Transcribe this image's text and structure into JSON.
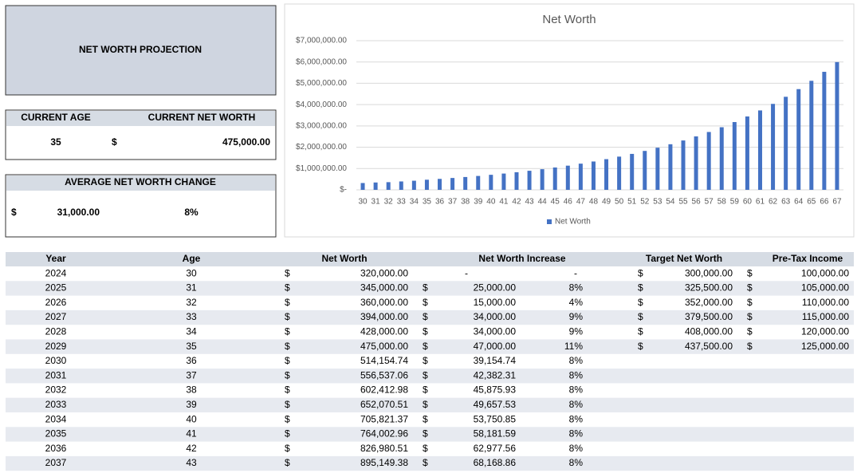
{
  "header": {
    "title": "NET WORTH PROJECTION"
  },
  "currency": "$",
  "current": {
    "age_label": "CURRENT AGE",
    "net_worth_label": "CURRENT NET WORTH",
    "age": "35",
    "net_worth": "475,000.00"
  },
  "average_change": {
    "label": "AVERAGE NET WORTH CHANGE",
    "amount": "31,000.00",
    "percent": "8%"
  },
  "chart_data": {
    "type": "bar",
    "title": "Net Worth",
    "categories": [
      30,
      31,
      32,
      33,
      34,
      35,
      36,
      37,
      38,
      39,
      40,
      41,
      42,
      43,
      44,
      45,
      46,
      47,
      48,
      49,
      50,
      51,
      52,
      53,
      54,
      55,
      56,
      57,
      58,
      59,
      60,
      61,
      62,
      63,
      64,
      65,
      66,
      67
    ],
    "series": [
      {
        "name": "Net Worth",
        "color": "#4472c4",
        "values": [
          320000,
          345000,
          360000,
          394000,
          428000,
          475000,
          514154.74,
          556537.06,
          602412.98,
          652070.51,
          705821.37,
          764002.96,
          826980.51,
          895149.38,
          969000,
          1049000,
          1135000,
          1229000,
          1330000,
          1440000,
          1559000,
          1687000,
          1827000,
          1977000,
          2140000,
          2317000,
          2508000,
          2715000,
          2938000,
          3181000,
          3443000,
          3727000,
          4034000,
          4367000,
          4727000,
          5117000,
          5539000,
          5996000
        ]
      }
    ],
    "ylim": [
      0,
      7000000
    ],
    "yticks": [
      {
        "value": 0,
        "label": "$-"
      },
      {
        "value": 1000000,
        "label": "$1,000,000.00"
      },
      {
        "value": 2000000,
        "label": "$2,000,000.00"
      },
      {
        "value": 3000000,
        "label": "$3,000,000.00"
      },
      {
        "value": 4000000,
        "label": "$4,000,000.00"
      },
      {
        "value": 5000000,
        "label": "$5,000,000.00"
      },
      {
        "value": 6000000,
        "label": "$6,000,000.00"
      },
      {
        "value": 7000000,
        "label": "$7,000,000.00"
      }
    ],
    "grid": true,
    "legend": "bottom"
  },
  "table": {
    "columns": [
      "Year",
      "Age",
      "Net Worth",
      "Net Worth Increase",
      "Target Net Worth",
      "Pre-Tax Income"
    ],
    "rows": [
      [
        "2024",
        "30",
        "320,000.00",
        "-",
        "-",
        "300,000.00",
        "100,000.00"
      ],
      [
        "2025",
        "31",
        "345,000.00",
        "25,000.00",
        "8%",
        "325,500.00",
        "105,000.00"
      ],
      [
        "2026",
        "32",
        "360,000.00",
        "15,000.00",
        "4%",
        "352,000.00",
        "110,000.00"
      ],
      [
        "2027",
        "33",
        "394,000.00",
        "34,000.00",
        "9%",
        "379,500.00",
        "115,000.00"
      ],
      [
        "2028",
        "34",
        "428,000.00",
        "34,000.00",
        "9%",
        "408,000.00",
        "120,000.00"
      ],
      [
        "2029",
        "35",
        "475,000.00",
        "47,000.00",
        "11%",
        "437,500.00",
        "125,000.00"
      ],
      [
        "2030",
        "36",
        "514,154.74",
        "39,154.74",
        "8%",
        null,
        null
      ],
      [
        "2031",
        "37",
        "556,537.06",
        "42,382.31",
        "8%",
        null,
        null
      ],
      [
        "2032",
        "38",
        "602,412.98",
        "45,875.93",
        "8%",
        null,
        null
      ],
      [
        "2033",
        "39",
        "652,070.51",
        "49,657.53",
        "8%",
        null,
        null
      ],
      [
        "2034",
        "40",
        "705,821.37",
        "53,750.85",
        "8%",
        null,
        null
      ],
      [
        "2035",
        "41",
        "764,002.96",
        "58,181.59",
        "8%",
        null,
        null
      ],
      [
        "2036",
        "42",
        "826,980.51",
        "62,977.56",
        "8%",
        null,
        null
      ],
      [
        "2037",
        "43",
        "895,149.38",
        "68,168.86",
        "8%",
        null,
        null
      ]
    ]
  }
}
